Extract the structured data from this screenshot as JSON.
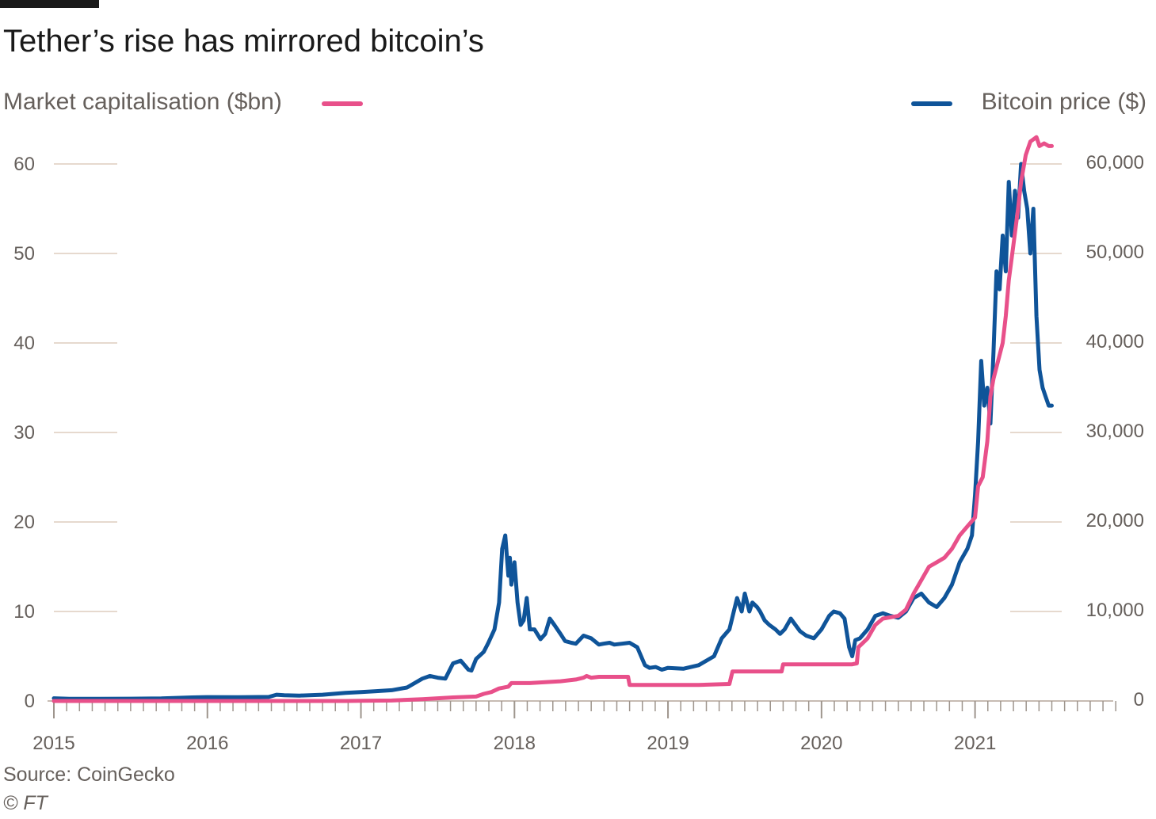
{
  "title": "Tether’s rise has mirrored bitcoin’s",
  "source": "Source: CoinGecko",
  "credit": "© FT",
  "colors": {
    "tether": "#e8508a",
    "bitcoin": "#0f5499",
    "grid": "#e6d9ce",
    "text": "#66605c"
  },
  "legend": {
    "left": {
      "label": "Market capitalisation ($bn)",
      "series": "Tether market cap"
    },
    "right": {
      "label": "Bitcoin price ($)",
      "series": "Bitcoin price"
    }
  },
  "chart_data": {
    "type": "line",
    "title": "Tether’s rise has mirrored bitcoin’s",
    "x_ticks": [
      "2015",
      "2016",
      "2017",
      "2018",
      "2019",
      "2020",
      "2021"
    ],
    "x_range": [
      2015.0,
      2021.9
    ],
    "y_left": {
      "label": "Market capitalisation ($bn)",
      "range": [
        0,
        62
      ],
      "ticks": [
        "0",
        "10",
        "20",
        "30",
        "40",
        "50",
        "60"
      ]
    },
    "y_right": {
      "label": "Bitcoin price ($)",
      "range": [
        0,
        62000
      ],
      "ticks": [
        "0",
        "10,000",
        "20,000",
        "30,000",
        "40,000",
        "50,000",
        "60,000"
      ]
    },
    "grid": true,
    "legend_position": "top",
    "series": [
      {
        "axis": "right",
        "x": [
          2015.0,
          2015.1,
          2015.3,
          2015.5,
          2015.7,
          2015.9,
          2016.0,
          2016.2,
          2016.4,
          2016.45,
          2016.5,
          2016.6,
          2016.75,
          2016.9,
          2017.0,
          2017.1,
          2017.2,
          2017.3,
          2017.4,
          2017.45,
          2017.5,
          2017.55,
          2017.6,
          2017.65,
          2017.7,
          2017.72,
          2017.75,
          2017.8,
          2017.83,
          2017.87,
          2017.9,
          2017.92,
          2017.94,
          2017.96,
          2017.97,
          2017.98,
          2018.0,
          2018.02,
          2018.04,
          2018.06,
          2018.08,
          2018.1,
          2018.13,
          2018.17,
          2018.2,
          2018.23,
          2018.26,
          2018.3,
          2018.33,
          2018.37,
          2018.4,
          2018.45,
          2018.5,
          2018.55,
          2018.58,
          2018.62,
          2018.65,
          2018.7,
          2018.75,
          2018.8,
          2018.85,
          2018.88,
          2018.92,
          2018.96,
          2019.0,
          2019.1,
          2019.2,
          2019.3,
          2019.35,
          2019.4,
          2019.45,
          2019.48,
          2019.5,
          2019.53,
          2019.55,
          2019.58,
          2019.6,
          2019.63,
          2019.66,
          2019.7,
          2019.73,
          2019.76,
          2019.8,
          2019.83,
          2019.86,
          2019.9,
          2019.95,
          2020.0,
          2020.05,
          2020.08,
          2020.12,
          2020.15,
          2020.18,
          2020.2,
          2020.22,
          2020.25,
          2020.3,
          2020.35,
          2020.4,
          2020.45,
          2020.5,
          2020.55,
          2020.6,
          2020.65,
          2020.7,
          2020.75,
          2020.8,
          2020.85,
          2020.9,
          2020.95,
          2020.98,
          2021.0,
          2021.02,
          2021.04,
          2021.06,
          2021.08,
          2021.1,
          2021.12,
          2021.14,
          2021.16,
          2021.18,
          2021.2,
          2021.22,
          2021.24,
          2021.26,
          2021.28,
          2021.3,
          2021.32,
          2021.34,
          2021.36,
          2021.38,
          2021.4,
          2021.42,
          2021.44,
          2021.46,
          2021.48,
          2021.5
        ],
        "values": [
          300,
          250,
          240,
          260,
          280,
          400,
          430,
          420,
          450,
          700,
          650,
          600,
          700,
          900,
          1000,
          1100,
          1200,
          1500,
          2500,
          2800,
          2600,
          2500,
          4200,
          4500,
          3500,
          3400,
          4700,
          5500,
          6500,
          8000,
          11000,
          17000,
          18500,
          14000,
          16000,
          13000,
          15500,
          11000,
          8500,
          9000,
          11500,
          8000,
          8000,
          6900,
          7500,
          9200,
          8500,
          7500,
          6700,
          6500,
          6400,
          7300,
          7000,
          6300,
          6400,
          6500,
          6300,
          6400,
          6500,
          6000,
          4000,
          3700,
          3800,
          3500,
          3700,
          3600,
          4000,
          5000,
          7000,
          8000,
          11500,
          10000,
          12000,
          10000,
          11000,
          10500,
          10000,
          9000,
          8500,
          8000,
          7500,
          8000,
          9200,
          8500,
          7800,
          7300,
          7000,
          8000,
          9500,
          10000,
          9800,
          9200,
          6000,
          5000,
          6800,
          7000,
          8000,
          9500,
          9800,
          9500,
          9300,
          10000,
          11500,
          12000,
          11000,
          10500,
          11500,
          13000,
          15500,
          17000,
          18500,
          23000,
          29000,
          38000,
          33000,
          35000,
          31000,
          39000,
          48000,
          46000,
          52000,
          48000,
          58000,
          52000,
          57000,
          54000,
          60000,
          57000,
          55000,
          50000,
          55000,
          43000,
          37000,
          35000,
          34000,
          33000,
          33000
        ]
      },
      {
        "axis": "left",
        "x": [
          2015.0,
          2016.0,
          2016.5,
          2016.9,
          2017.0,
          2017.2,
          2017.4,
          2017.6,
          2017.75,
          2017.8,
          2017.85,
          2017.9,
          2017.96,
          2017.98,
          2018.0,
          2018.1,
          2018.2,
          2018.3,
          2018.4,
          2018.45,
          2018.47,
          2018.5,
          2018.55,
          2018.6,
          2018.7,
          2018.74,
          2018.75,
          2018.8,
          2018.9,
          2019.0,
          2019.2,
          2019.4,
          2019.42,
          2019.6,
          2019.74,
          2019.75,
          2019.9,
          2020.0,
          2020.2,
          2020.23,
          2020.24,
          2020.3,
          2020.35,
          2020.4,
          2020.5,
          2020.55,
          2020.6,
          2020.65,
          2020.7,
          2020.75,
          2020.8,
          2020.85,
          2020.9,
          2020.95,
          2021.0,
          2021.02,
          2021.05,
          2021.08,
          2021.1,
          2021.12,
          2021.15,
          2021.18,
          2021.2,
          2021.22,
          2021.25,
          2021.28,
          2021.3,
          2021.33,
          2021.36,
          2021.4,
          2021.42,
          2021.45,
          2021.48,
          2021.5
        ],
        "values": [
          0.0,
          0.0,
          0.0,
          0.0,
          0.03,
          0.05,
          0.2,
          0.4,
          0.5,
          0.8,
          1.0,
          1.4,
          1.6,
          2.0,
          2.0,
          2.0,
          2.1,
          2.2,
          2.4,
          2.6,
          2.8,
          2.6,
          2.7,
          2.7,
          2.7,
          2.7,
          1.8,
          1.8,
          1.8,
          1.8,
          1.8,
          1.9,
          3.3,
          3.3,
          3.3,
          4.1,
          4.1,
          4.1,
          4.1,
          4.2,
          6.0,
          7.0,
          8.5,
          9.2,
          9.5,
          10.2,
          12.0,
          13.5,
          15.0,
          15.5,
          16.0,
          17.0,
          18.5,
          19.5,
          20.5,
          24.0,
          25.0,
          29.0,
          34.0,
          36.0,
          38.0,
          40.0,
          43.0,
          47.0,
          51.0,
          55.0,
          58.0,
          61.0,
          62.5,
          63.0,
          62.0,
          62.3,
          62.0,
          62.0
        ]
      }
    ]
  }
}
